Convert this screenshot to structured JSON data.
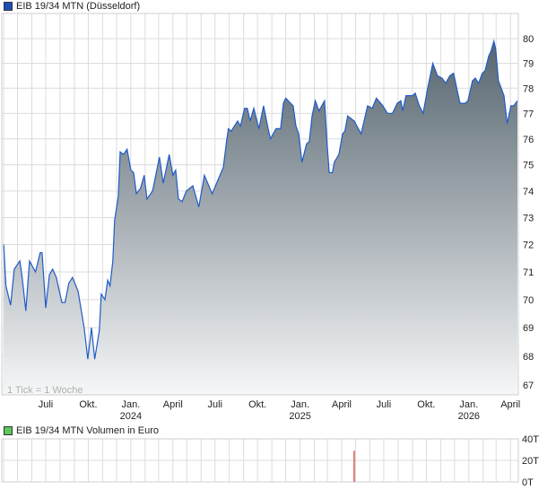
{
  "legend": {
    "price_label": "EIB 19/34 MTN (Düsseldorf)",
    "price_color": "#1f4fb5",
    "volume_label": "EIB 19/34 MTN Volumen in Euro",
    "volume_color": "#5cc85c"
  },
  "tick_note": "1 Tick = 1 Woche",
  "colors": {
    "line": "#1f5bc7",
    "fill_top": "#56656f",
    "fill_bottom": "#f6f7f8",
    "grid": "#dcdcdc",
    "volume_bar": "#e06060"
  },
  "chart_data": [
    {
      "type": "area",
      "title": "EIB 19/34 MTN (Düsseldorf)",
      "yscale": "log",
      "xlim": [
        "2023-03-28",
        "2026-04-18"
      ],
      "ylim": [
        66.67,
        81.04
      ],
      "grid": true,
      "legend": "top-left",
      "yticks": [
        67,
        68,
        69,
        70,
        71,
        72,
        73,
        74,
        75,
        76,
        77,
        78,
        79,
        80
      ],
      "xticks": [
        {
          "date": "2023-07-01",
          "label": "Juli",
          "year": ""
        },
        {
          "date": "2023-10-01",
          "label": "Okt.",
          "year": ""
        },
        {
          "date": "2024-01-01",
          "label": "Jan.",
          "year": "2024"
        },
        {
          "date": "2024-04-01",
          "label": "April",
          "year": ""
        },
        {
          "date": "2024-07-01",
          "label": "Juli",
          "year": ""
        },
        {
          "date": "2024-10-01",
          "label": "Okt.",
          "year": ""
        },
        {
          "date": "2025-01-01",
          "label": "Jan.",
          "year": "2025"
        },
        {
          "date": "2025-04-01",
          "label": "April",
          "year": ""
        },
        {
          "date": "2025-07-01",
          "label": "Juli",
          "year": ""
        },
        {
          "date": "2025-10-01",
          "label": "Okt.",
          "year": ""
        },
        {
          "date": "2026-01-01",
          "label": "Jan.",
          "year": "2026"
        },
        {
          "date": "2026-04-01",
          "label": "April",
          "year": ""
        }
      ],
      "points": [
        [
          "2023-04-01",
          72.0
        ],
        [
          "2023-04-06",
          70.5
        ],
        [
          "2023-04-16",
          69.8
        ],
        [
          "2023-04-24",
          71.1
        ],
        [
          "2023-05-06",
          71.4
        ],
        [
          "2023-05-11",
          70.8
        ],
        [
          "2023-05-19",
          69.6
        ],
        [
          "2023-05-27",
          71.4
        ],
        [
          "2023-06-09",
          71.0
        ],
        [
          "2023-06-19",
          71.7
        ],
        [
          "2023-06-23",
          71.7
        ],
        [
          "2023-07-01",
          69.7
        ],
        [
          "2023-07-09",
          70.9
        ],
        [
          "2023-07-16",
          71.1
        ],
        [
          "2023-07-24",
          70.8
        ],
        [
          "2023-08-05",
          69.9
        ],
        [
          "2023-08-12",
          69.9
        ],
        [
          "2023-08-20",
          70.6
        ],
        [
          "2023-08-28",
          70.8
        ],
        [
          "2023-09-09",
          70.3
        ],
        [
          "2023-09-22",
          69.0
        ],
        [
          "2023-09-30",
          67.9
        ],
        [
          "2023-10-08",
          69.0
        ],
        [
          "2023-10-15",
          67.9
        ],
        [
          "2023-10-25",
          68.9
        ],
        [
          "2023-10-29",
          70.2
        ],
        [
          "2023-11-06",
          70.0
        ],
        [
          "2023-11-12",
          70.7
        ],
        [
          "2023-11-17",
          70.5
        ],
        [
          "2023-11-23",
          71.4
        ],
        [
          "2023-11-27",
          72.9
        ],
        [
          "2023-12-05",
          73.8
        ],
        [
          "2023-12-09",
          75.5
        ],
        [
          "2023-12-16",
          75.4
        ],
        [
          "2023-12-24",
          75.6
        ],
        [
          "2024-01-01",
          74.8
        ],
        [
          "2024-01-07",
          74.7
        ],
        [
          "2024-01-13",
          73.9
        ],
        [
          "2024-01-22",
          74.1
        ],
        [
          "2024-01-30",
          74.6
        ],
        [
          "2024-02-05",
          73.7
        ],
        [
          "2024-02-17",
          74.0
        ],
        [
          "2024-03-03",
          75.3
        ],
        [
          "2024-03-11",
          74.3
        ],
        [
          "2024-03-24",
          75.4
        ],
        [
          "2024-04-01",
          74.6
        ],
        [
          "2024-04-07",
          74.8
        ],
        [
          "2024-04-13",
          73.7
        ],
        [
          "2024-04-21",
          73.6
        ],
        [
          "2024-04-30",
          74.0
        ],
        [
          "2024-05-14",
          74.2
        ],
        [
          "2024-05-27",
          73.4
        ],
        [
          "2024-06-08",
          74.6
        ],
        [
          "2024-06-25",
          73.9
        ],
        [
          "2024-07-07",
          74.4
        ],
        [
          "2024-07-19",
          74.9
        ],
        [
          "2024-07-26",
          75.9
        ],
        [
          "2024-07-30",
          76.4
        ],
        [
          "2024-08-05",
          76.3
        ],
        [
          "2024-08-19",
          76.7
        ],
        [
          "2024-08-25",
          76.5
        ],
        [
          "2024-09-03",
          77.2
        ],
        [
          "2024-09-09",
          77.2
        ],
        [
          "2024-09-15",
          76.7
        ],
        [
          "2024-09-23",
          77.2
        ],
        [
          "2024-10-04",
          76.4
        ],
        [
          "2024-10-14",
          77.3
        ],
        [
          "2024-10-24",
          76.4
        ],
        [
          "2024-10-29",
          76.0
        ],
        [
          "2024-11-10",
          76.4
        ],
        [
          "2024-11-20",
          76.4
        ],
        [
          "2024-11-26",
          77.4
        ],
        [
          "2024-12-01",
          77.6
        ],
        [
          "2024-12-17",
          77.3
        ],
        [
          "2024-12-23",
          76.5
        ],
        [
          "2024-12-29",
          76.2
        ],
        [
          "2025-01-05",
          75.1
        ],
        [
          "2025-01-15",
          75.8
        ],
        [
          "2025-01-21",
          75.9
        ],
        [
          "2025-01-27",
          76.9
        ],
        [
          "2025-02-03",
          77.5
        ],
        [
          "2025-02-11",
          77.1
        ],
        [
          "2025-02-23",
          77.5
        ],
        [
          "2025-03-01",
          75.7
        ],
        [
          "2025-03-05",
          74.7
        ],
        [
          "2025-03-12",
          74.7
        ],
        [
          "2025-03-16",
          75.1
        ],
        [
          "2025-03-26",
          75.4
        ],
        [
          "2025-04-03",
          76.2
        ],
        [
          "2025-04-08",
          76.3
        ],
        [
          "2025-04-14",
          76.9
        ],
        [
          "2025-04-28",
          76.7
        ],
        [
          "2025-05-13",
          76.2
        ],
        [
          "2025-05-27",
          77.3
        ],
        [
          "2025-06-06",
          77.2
        ],
        [
          "2025-06-15",
          77.6
        ],
        [
          "2025-06-29",
          77.3
        ],
        [
          "2025-07-09",
          77.0
        ],
        [
          "2025-07-20",
          77.0
        ],
        [
          "2025-07-30",
          77.4
        ],
        [
          "2025-08-07",
          77.5
        ],
        [
          "2025-08-11",
          77.1
        ],
        [
          "2025-08-18",
          77.7
        ],
        [
          "2025-09-01",
          77.7
        ],
        [
          "2025-09-07",
          77.8
        ],
        [
          "2025-09-16",
          77.3
        ],
        [
          "2025-09-24",
          77.0
        ],
        [
          "2025-10-04",
          78.0
        ],
        [
          "2025-10-15",
          79.0
        ],
        [
          "2025-10-25",
          78.5
        ],
        [
          "2025-11-04",
          78.4
        ],
        [
          "2025-11-12",
          78.2
        ],
        [
          "2025-11-21",
          78.5
        ],
        [
          "2025-11-29",
          78.6
        ],
        [
          "2025-12-07",
          77.9
        ],
        [
          "2025-12-13",
          77.4
        ],
        [
          "2025-12-24",
          77.4
        ],
        [
          "2025-12-30",
          77.5
        ],
        [
          "2026-01-09",
          78.3
        ],
        [
          "2026-01-15",
          78.4
        ],
        [
          "2026-01-22",
          78.2
        ],
        [
          "2026-01-30",
          78.6
        ],
        [
          "2026-02-05",
          78.7
        ],
        [
          "2026-02-13",
          79.3
        ],
        [
          "2026-02-18",
          79.5
        ],
        [
          "2026-02-24",
          79.9
        ],
        [
          "2026-02-28",
          79.6
        ],
        [
          "2026-03-06",
          78.3
        ],
        [
          "2026-03-18",
          77.7
        ],
        [
          "2026-03-25",
          76.6
        ],
        [
          "2026-04-02",
          77.3
        ],
        [
          "2026-04-08",
          77.3
        ],
        [
          "2026-04-16",
          77.5
        ]
      ]
    },
    {
      "type": "bar",
      "title": "EIB 19/34 MTN Volumen in Euro",
      "ylim": [
        0,
        40
      ],
      "unit": "T",
      "yticks": [
        {
          "value": 0,
          "label": "0T"
        },
        {
          "value": 20,
          "label": "20T"
        },
        {
          "value": 40,
          "label": "40T"
        }
      ],
      "bars": [
        [
          "2025-04-28",
          29
        ]
      ]
    }
  ]
}
